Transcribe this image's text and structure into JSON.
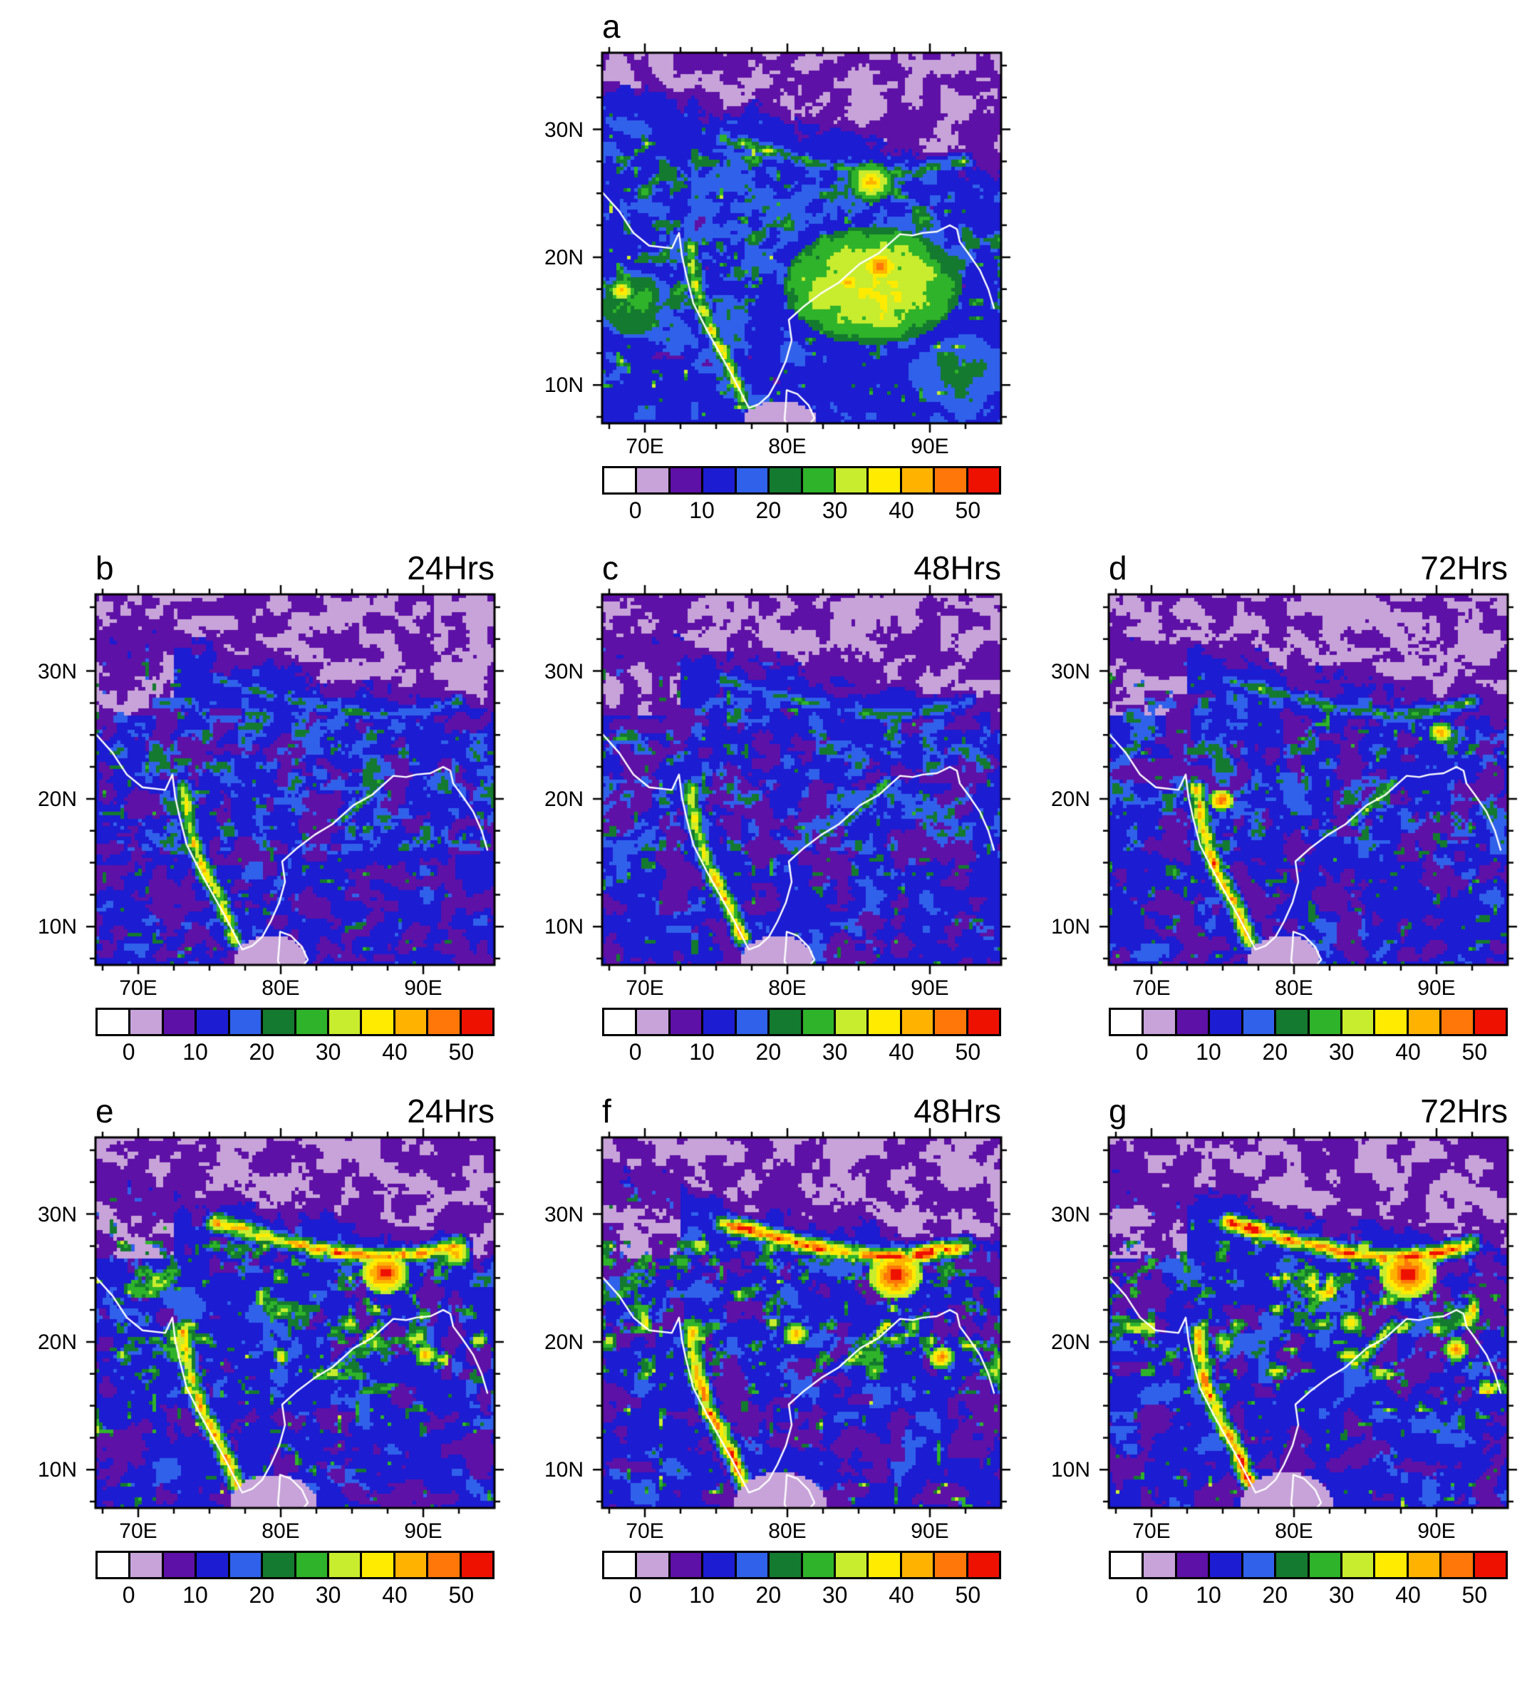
{
  "figure": {
    "panels": [
      {
        "letter": "a",
        "title": "",
        "row": 0
      },
      {
        "letter": "b",
        "title": "24Hrs",
        "row": 1
      },
      {
        "letter": "c",
        "title": "48Hrs",
        "row": 1
      },
      {
        "letter": "d",
        "title": "72Hrs",
        "row": 1
      },
      {
        "letter": "e",
        "title": "24Hrs",
        "row": 2
      },
      {
        "letter": "f",
        "title": "48Hrs",
        "row": 2
      },
      {
        "letter": "g",
        "title": "72Hrs",
        "row": 2
      }
    ],
    "axis": {
      "lat_ticks": [
        {
          "label": "30N",
          "value": 30
        },
        {
          "label": "20N",
          "value": 20
        },
        {
          "label": "10N",
          "value": 10
        }
      ],
      "lon_ticks": [
        {
          "label": "70E",
          "value": 70
        },
        {
          "label": "80E",
          "value": 80
        },
        {
          "label": "90E",
          "value": 90
        }
      ],
      "lon_range": [
        67,
        95
      ],
      "lat_range": [
        7,
        36
      ],
      "minor_tick_step": 2.5
    },
    "colorbar": {
      "colors": [
        "#ffffff",
        "#c7a3d9",
        "#5e11a6",
        "#1c1cd2",
        "#3061ea",
        "#147a2f",
        "#2fb32a",
        "#c8ec2e",
        "#ffeb00",
        "#ffb300",
        "#ff7708",
        "#ee1100"
      ],
      "tick_labels": [
        "0",
        "10",
        "20",
        "30",
        "40",
        "50"
      ],
      "tick_positions": [
        1,
        3,
        5,
        7,
        9,
        11
      ],
      "bin_width": 5
    },
    "field_profiles": {
      "a": {
        "seed": 101,
        "base": 14,
        "amp": 5,
        "speckle": 16,
        "nwDry": 0,
        "purpleThresh": 0.8,
        "coast": 42,
        "foothills": 34,
        "east": 0,
        "band": 0.25,
        "blobs": [
          [
            86,
            17.8,
            6.2,
            4.6,
            35,
            12
          ],
          [
            69.3,
            16.3,
            2.8,
            2.6,
            26,
            10
          ],
          [
            92,
            11,
            3.5,
            3,
            22,
            8
          ]
        ],
        "hotspots": [
          [
            86.5,
            19.3,
            1.5,
            50
          ],
          [
            84.3,
            18,
            1.1,
            45
          ],
          [
            68.4,
            17.4,
            0.9,
            44
          ],
          [
            85.9,
            25.9,
            1.6,
            44
          ]
        ],
        "south": [
          79.5,
          7.0,
          2.6,
          1.8
        ]
      },
      "b": {
        "seed": 202,
        "base": 12.5,
        "amp": 6,
        "speckle": 8,
        "nwDry": 1,
        "purpleThresh": 0.58,
        "coast": 44,
        "foothills": 26,
        "east": 33,
        "band": 0.12,
        "blobs": [],
        "hotspots": [],
        "south": [
          79.3,
          7.3,
          2.5,
          2.0
        ]
      },
      "c": {
        "seed": 303,
        "base": 12.5,
        "amp": 6,
        "speckle": 9,
        "nwDry": 1,
        "purpleThresh": 0.58,
        "coast": 46,
        "foothills": 28,
        "east": 36,
        "band": 0.12,
        "blobs": [],
        "hotspots": [],
        "south": [
          79.3,
          7.3,
          2.5,
          2.0
        ]
      },
      "d": {
        "seed": 404,
        "base": 12.5,
        "amp": 6,
        "speckle": 9,
        "nwDry": 1,
        "purpleThresh": 0.59,
        "coast": 50,
        "foothills": 30,
        "east": 38,
        "band": 0.15,
        "blobs": [],
        "hotspots": [
          [
            74.9,
            19.9,
            0.9,
            52
          ],
          [
            90.3,
            25.2,
            0.85,
            47
          ]
        ],
        "south": [
          79.3,
          7.3,
          2.5,
          2.0
        ]
      },
      "e": {
        "seed": 505,
        "base": 13,
        "amp": 6,
        "speckle": 13,
        "nwDry": 1,
        "purpleThresh": 0.61,
        "coast": 52,
        "foothills": 58,
        "east": 40,
        "band": 0.5,
        "blobs": [],
        "hotspots": [
          [
            87.3,
            25.4,
            1.7,
            56
          ],
          [
            92.3,
            26.9,
            1.0,
            46
          ],
          [
            90.2,
            19.0,
            0.8,
            46
          ]
        ],
        "south": [
          79.5,
          7.4,
          3.0,
          2.2
        ]
      },
      "f": {
        "seed": 606,
        "base": 13,
        "amp": 6,
        "speckle": 14,
        "nwDry": 1,
        "purpleThresh": 0.59,
        "coast": 55,
        "foothills": 62,
        "east": 46,
        "band": 0.55,
        "blobs": [],
        "hotspots": [
          [
            87.6,
            25.2,
            1.9,
            57
          ],
          [
            80.6,
            20.6,
            0.9,
            46
          ],
          [
            90.8,
            18.8,
            0.9,
            50
          ]
        ],
        "south": [
          79.5,
          7.4,
          3.2,
          2.4
        ]
      },
      "g": {
        "seed": 707,
        "base": 13,
        "amp": 6,
        "speckle": 14,
        "nwDry": 1,
        "purpleThresh": 0.6,
        "coast": 55,
        "foothills": 62,
        "east": 46,
        "band": 0.6,
        "blobs": [],
        "hotspots": [
          [
            88,
            25.3,
            2.0,
            57
          ],
          [
            91.4,
            19.4,
            0.9,
            50
          ],
          [
            84.0,
            21.5,
            0.8,
            44
          ]
        ],
        "south": [
          79.5,
          7.4,
          3.2,
          2.4
        ]
      }
    }
  }
}
